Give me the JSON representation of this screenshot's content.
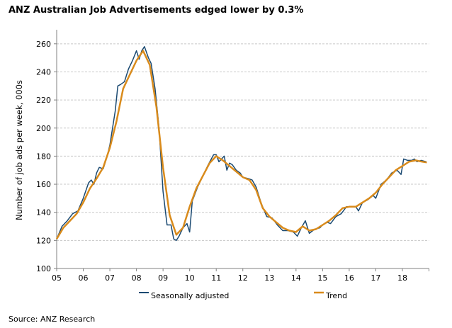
{
  "chart_data": {
    "type": "line",
    "title": "ANZ Australian Job Advertisements edged lower by 0.3%",
    "xlabel": "",
    "ylabel": "Number of job ads per week, 000s",
    "xlim": [
      2005,
      2019
    ],
    "ylim": [
      100,
      270
    ],
    "yticks": [
      100,
      120,
      140,
      160,
      180,
      200,
      220,
      240,
      260
    ],
    "xtick_values": [
      2005,
      2006,
      2007,
      2008,
      2009,
      2010,
      2011,
      2012,
      2013,
      2014,
      2015,
      2016,
      2017,
      2018
    ],
    "xtick_labels": [
      "05",
      "06",
      "07",
      "08",
      "09",
      "10",
      "11",
      "12",
      "13",
      "14",
      "15",
      "16",
      "17",
      "18"
    ],
    "grid": "horizontal dashed",
    "legend_position": "bottom",
    "source": "Source: ANZ Research",
    "series": [
      {
        "name": "Seasonally adjusted",
        "color": "#1b4a72",
        "x": [
          2005.0,
          2005.2,
          2005.4,
          2005.6,
          2005.8,
          2006.0,
          2006.2,
          2006.3,
          2006.4,
          2006.5,
          2006.6,
          2006.75,
          2006.9,
          2007.0,
          2007.2,
          2007.3,
          2007.4,
          2007.55,
          2007.7,
          2007.85,
          2008.0,
          2008.1,
          2008.2,
          2008.3,
          2008.45,
          2008.55,
          2008.7,
          2008.85,
          2009.0,
          2009.15,
          2009.3,
          2009.4,
          2009.5,
          2009.6,
          2009.75,
          2009.9,
          2010.0,
          2010.1,
          2010.3,
          2010.5,
          2010.7,
          2010.9,
          2011.0,
          2011.1,
          2011.2,
          2011.3,
          2011.4,
          2011.5,
          2011.6,
          2011.75,
          2011.9,
          2012.0,
          2012.2,
          2012.35,
          2012.5,
          2012.7,
          2012.9,
          2013.1,
          2013.3,
          2013.5,
          2013.7,
          2013.9,
          2014.05,
          2014.2,
          2014.35,
          2014.5,
          2014.7,
          2014.9,
          2015.0,
          2015.15,
          2015.3,
          2015.5,
          2015.7,
          2015.9,
          2016.1,
          2016.25,
          2016.35,
          2016.5,
          2016.7,
          2016.9,
          2017.0,
          2017.2,
          2017.4,
          2017.6,
          2017.8,
          2017.95,
          2018.05,
          2018.2,
          2018.35,
          2018.45,
          2018.55,
          2018.7,
          2018.9
        ],
        "values": [
          121,
          130,
          134,
          139,
          141,
          150,
          161,
          163,
          160,
          168,
          172,
          171,
          180,
          188,
          212,
          230,
          231,
          233,
          242,
          248,
          255,
          249,
          255,
          258,
          250,
          246,
          228,
          200,
          155,
          131,
          131,
          121,
          120,
          123,
          129,
          132,
          126,
          148,
          158,
          166,
          174,
          181,
          181,
          176,
          178,
          180,
          170,
          175,
          174,
          170,
          168,
          165,
          164,
          163,
          158,
          146,
          137,
          136,
          131,
          127,
          127,
          126,
          123,
          129,
          134,
          125,
          128,
          129,
          131,
          133,
          132,
          137,
          139,
          144,
          144,
          144,
          141,
          147,
          149,
          152,
          150,
          160,
          163,
          168,
          170,
          167,
          178,
          177,
          177,
          178,
          176,
          177,
          176
        ]
      },
      {
        "name": "Trend",
        "color": "#d98b1c",
        "x": [
          2005.0,
          2005.25,
          2005.5,
          2005.75,
          2006.0,
          2006.25,
          2006.5,
          2006.75,
          2007.0,
          2007.25,
          2007.5,
          2007.75,
          2008.0,
          2008.25,
          2008.5,
          2008.75,
          2009.0,
          2009.25,
          2009.5,
          2009.75,
          2010.0,
          2010.25,
          2010.5,
          2010.75,
          2011.0,
          2011.25,
          2011.5,
          2011.75,
          2012.0,
          2012.25,
          2012.5,
          2012.75,
          2013.0,
          2013.25,
          2013.5,
          2013.75,
          2014.0,
          2014.25,
          2014.5,
          2014.75,
          2015.0,
          2015.25,
          2015.5,
          2015.75,
          2016.0,
          2016.25,
          2016.5,
          2016.75,
          2017.0,
          2017.25,
          2017.5,
          2017.75,
          2018.0,
          2018.25,
          2018.5,
          2018.75,
          2018.92
        ],
        "values": [
          121,
          129,
          134,
          139,
          147,
          157,
          164,
          172,
          186,
          205,
          228,
          238,
          248,
          255,
          245,
          215,
          172,
          138,
          124,
          129,
          144,
          157,
          166,
          175,
          180,
          177,
          173,
          169,
          165,
          163,
          156,
          143,
          137,
          133,
          129,
          127,
          126,
          130,
          127,
          128,
          131,
          134,
          138,
          143,
          144,
          144,
          147,
          150,
          154,
          160,
          165,
          170,
          173,
          176,
          177,
          176,
          175.5
        ]
      }
    ]
  }
}
